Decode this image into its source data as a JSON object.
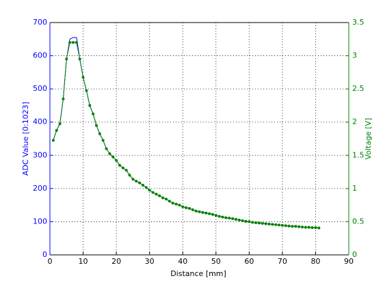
{
  "chart_data": {
    "type": "line",
    "xlabel": "Distance [mm]",
    "ylabel": "ADC Value [0:1023]",
    "y2label": "Voltage [V]",
    "x": [
      1,
      2,
      3,
      4,
      5,
      6,
      7,
      8,
      9,
      10,
      11,
      12,
      13,
      14,
      15,
      16,
      17,
      18,
      19,
      20,
      21,
      22,
      23,
      24,
      25,
      26,
      27,
      28,
      29,
      30,
      31,
      32,
      33,
      34,
      35,
      36,
      37,
      38,
      39,
      40,
      41,
      42,
      43,
      44,
      45,
      46,
      47,
      48,
      49,
      50,
      51,
      52,
      53,
      54,
      55,
      56,
      57,
      58,
      59,
      60,
      61,
      62,
      63,
      64,
      65,
      66,
      67,
      68,
      69,
      70,
      71,
      72,
      73,
      74,
      75,
      76,
      77,
      78,
      79,
      80,
      81
    ],
    "series": [
      {
        "color": "#0000ff",
        "axis": "y",
        "values": [
          345,
          375,
          395,
          470,
          590,
          650,
          655,
          655,
          590,
          535,
          495,
          450,
          425,
          390,
          365,
          345,
          320,
          305,
          295,
          285,
          270,
          262,
          255,
          240,
          228,
          222,
          217,
          210,
          203,
          195,
          188,
          183,
          178,
          172,
          168,
          162,
          156,
          153,
          150,
          145,
          142,
          140,
          136,
          132,
          130,
          128,
          126,
          124,
          122,
          119,
          116,
          114,
          112,
          111,
          109,
          107,
          105,
          103,
          101,
          100,
          98,
          97,
          96,
          95,
          94,
          93,
          92,
          91,
          90,
          89,
          88,
          87,
          86,
          86,
          85,
          84,
          83,
          83,
          82,
          82,
          81
        ]
      },
      {
        "color": "#008000",
        "axis": "y2",
        "values": [
          1.725,
          1.875,
          1.975,
          2.35,
          2.95,
          3.2,
          3.2,
          3.2,
          2.95,
          2.675,
          2.475,
          2.25,
          2.125,
          1.95,
          1.825,
          1.725,
          1.6,
          1.525,
          1.475,
          1.425,
          1.35,
          1.31,
          1.275,
          1.2,
          1.14,
          1.11,
          1.085,
          1.05,
          1.015,
          0.975,
          0.94,
          0.915,
          0.89,
          0.86,
          0.84,
          0.81,
          0.78,
          0.765,
          0.75,
          0.725,
          0.71,
          0.7,
          0.68,
          0.66,
          0.65,
          0.64,
          0.63,
          0.62,
          0.61,
          0.595,
          0.58,
          0.57,
          0.56,
          0.555,
          0.545,
          0.535,
          0.525,
          0.515,
          0.505,
          0.5,
          0.49,
          0.485,
          0.48,
          0.475,
          0.47,
          0.465,
          0.46,
          0.455,
          0.45,
          0.445,
          0.44,
          0.435,
          0.43,
          0.43,
          0.425,
          0.42,
          0.415,
          0.415,
          0.41,
          0.41,
          0.405
        ]
      }
    ],
    "xlim": [
      0,
      90
    ],
    "xticks": [
      0,
      10,
      20,
      30,
      40,
      50,
      60,
      70,
      80,
      90
    ],
    "ylim": [
      0,
      700
    ],
    "yticks": [
      0,
      100,
      200,
      300,
      400,
      500,
      600,
      700
    ],
    "y2lim": [
      0,
      3.5
    ],
    "y2ticks": [
      0,
      0.5,
      1,
      1.5,
      2,
      2.5,
      3,
      3.5
    ],
    "grid": true
  }
}
